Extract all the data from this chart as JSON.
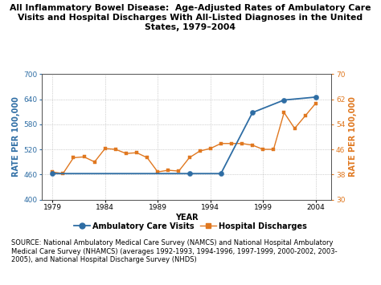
{
  "title": "All Inflammatory Bowel Disease:  Age-Adjusted Rates of Ambulatory Care\nVisits and Hospital Discharges With All-Listed Diagnoses in the United\nStates, 1979–2004",
  "xlabel": "YEAR",
  "ylabel_left": "RATE PER 100,000",
  "ylabel_right": "RATE PER 100,000",
  "source_text": "SOURCE: National Ambulatory Medical Care Survey (NAMCS) and National Hospital Ambulatory\nMedical Care Survey (NHAMCS) (averages 1992-1993, 1994-1996, 1997-1999, 2000-2002, 2003-\n2005), and National Hospital Discharge Survey (NHDS)",
  "ambulatory_years": [
    1979,
    1992,
    1995,
    1998,
    2001,
    2004
  ],
  "ambulatory_values": [
    462,
    462,
    462,
    608,
    638,
    645
  ],
  "hospital_years": [
    1979,
    1980,
    1981,
    1982,
    1983,
    1984,
    1985,
    1986,
    1987,
    1988,
    1989,
    1990,
    1991,
    1992,
    1993,
    1994,
    1995,
    1996,
    1997,
    1998,
    1999,
    2000,
    2001,
    2002,
    2003,
    2004
  ],
  "hospital_values": [
    466,
    462,
    500,
    502,
    490,
    522,
    520,
    510,
    512,
    500,
    466,
    470,
    468,
    500,
    516,
    522,
    534,
    534,
    534,
    530,
    520,
    520,
    608,
    570,
    600,
    630
  ],
  "ambulatory_color": "#2E6DA4",
  "hospital_color": "#E07820",
  "left_ylim": [
    400,
    700
  ],
  "left_yticks": [
    400,
    460,
    520,
    580,
    640,
    700
  ],
  "right_ylim": [
    30,
    70
  ],
  "right_yticks": [
    30,
    38,
    46,
    54,
    62,
    70
  ],
  "xticks": [
    1979,
    1984,
    1989,
    1994,
    1999,
    2004
  ],
  "xlim": [
    1978,
    2005.5
  ],
  "background_color": "#FFFFFF",
  "legend_ambulatory": "Ambulatory Care Visits",
  "legend_hospital": "Hospital Discharges",
  "title_fontsize": 7.8,
  "axis_label_fontsize": 7,
  "tick_fontsize": 6.5,
  "source_fontsize": 6,
  "legend_fontsize": 7
}
